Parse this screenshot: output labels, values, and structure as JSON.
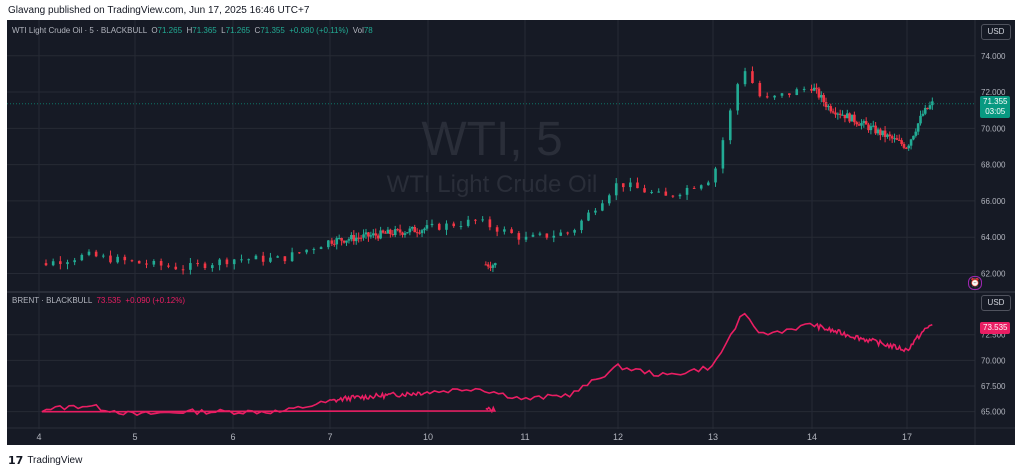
{
  "header": {
    "publisher_text": "Glavang published on TradingView.com, Jun 17, 2025 16:46 UTC+7"
  },
  "footer": {
    "logo_glyph": "17",
    "brand": "TradingView"
  },
  "colors": {
    "background": "#161a25",
    "up": "#22ab94",
    "down": "#f23645",
    "brent_line": "#e91e63",
    "grid": "#262a35",
    "axis_text": "#b2b5be",
    "watermark": "#2a2e39"
  },
  "wti": {
    "legend_name": "WTI Light Crude Oil · 5 · BLACKBULL",
    "o_label": "O",
    "o_value": "71.265",
    "h_label": "H",
    "h_value": "71.365",
    "l_label": "L",
    "l_value": "71.265",
    "c_label": "C",
    "c_value": "71.355",
    "change": "+0.080 (+0.11%)",
    "vol_label": "Vol",
    "vol_value": "78",
    "watermark_symbol": "WTI, 5",
    "watermark_name": "WTI Light Crude Oil",
    "currency_button": "USD",
    "last_price": "71.355",
    "countdown": "03:05"
  },
  "brent": {
    "legend_name": "BRENT · BLACKBULL",
    "price": "73.535",
    "change": "+0.090 (+0.12%)",
    "currency_button": "USD",
    "last_price": "73.535"
  },
  "chart_data": [
    {
      "type": "candlestick",
      "name": "WTI Light Crude Oil · 5 · BLACKBULL",
      "x": [
        "4",
        "4.5",
        "5",
        "5.5",
        "6",
        "6.5",
        "7",
        "7.5",
        "10",
        "10.5",
        "11",
        "11.5",
        "12",
        "12.5",
        "13",
        "13.3",
        "13.5",
        "14",
        "14.5",
        "17",
        "17.5",
        "17.8"
      ],
      "y": [
        62.5,
        63.0,
        62.6,
        62.3,
        62.8,
        62.8,
        63.8,
        63.9,
        64.5,
        64.9,
        63.9,
        64.3,
        67.0,
        66.2,
        67.3,
        73.5,
        71.5,
        72.3,
        71.2,
        69.0,
        70.8,
        71.355
      ],
      "x_ticks": [
        "4",
        "5",
        "6",
        "7",
        "10",
        "11",
        "12",
        "13",
        "14",
        "17"
      ],
      "y_ticks": [
        "62.000",
        "64.000",
        "66.000",
        "68.000",
        "70.000",
        "72.000",
        "74.000"
      ],
      "ylim": [
        61.2,
        75.2
      ]
    },
    {
      "type": "line",
      "name": "BRENT · BLACKBULL",
      "x": [
        "4",
        "4.5",
        "5",
        "5.5",
        "6",
        "6.5",
        "7",
        "7.5",
        "10",
        "10.5",
        "11",
        "11.5",
        "12",
        "12.5",
        "13",
        "13.3",
        "13.5",
        "14",
        "14.5",
        "17",
        "17.5",
        "17.8"
      ],
      "y": [
        65.2,
        65.6,
        64.7,
        65.0,
        65.0,
        65.0,
        66.0,
        66.3,
        66.9,
        67.3,
        66.2,
        66.7,
        69.4,
        68.5,
        69.4,
        74.5,
        72.5,
        73.5,
        73.0,
        71.0,
        72.8,
        73.535
      ],
      "y_ticks": [
        "65.000",
        "67.500",
        "70.000",
        "72.500"
      ],
      "ylim": [
        63.7,
        75.3
      ]
    }
  ]
}
